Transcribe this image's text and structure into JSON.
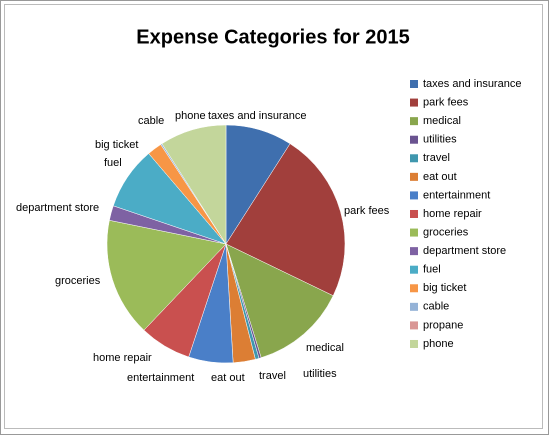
{
  "chart_data": {
    "type": "pie",
    "title": "Expense Categories for 2015",
    "categories": [
      "taxes and insurance",
      "park fees",
      "medical",
      "utilities",
      "travel",
      "eat out",
      "entertainment",
      "home repair",
      "groceries",
      "department store",
      "fuel",
      "big ticket",
      "cable",
      "propane",
      "phone"
    ],
    "values": [
      9,
      23,
      13,
      0.3,
      0.5,
      3,
      6,
      7,
      16,
      2,
      8.5,
      2,
      0.2,
      0,
      9
    ],
    "colors": [
      "#3F6FAE",
      "#A13F3C",
      "#89A64D",
      "#6A5390",
      "#3F97AE",
      "#DC7E34",
      "#4A7FC8",
      "#C9504F",
      "#9BBB59",
      "#7E62A3",
      "#4BACC6",
      "#F79646",
      "#95B3D7",
      "#D99694",
      "#C3D69B"
    ],
    "legend": "right"
  }
}
